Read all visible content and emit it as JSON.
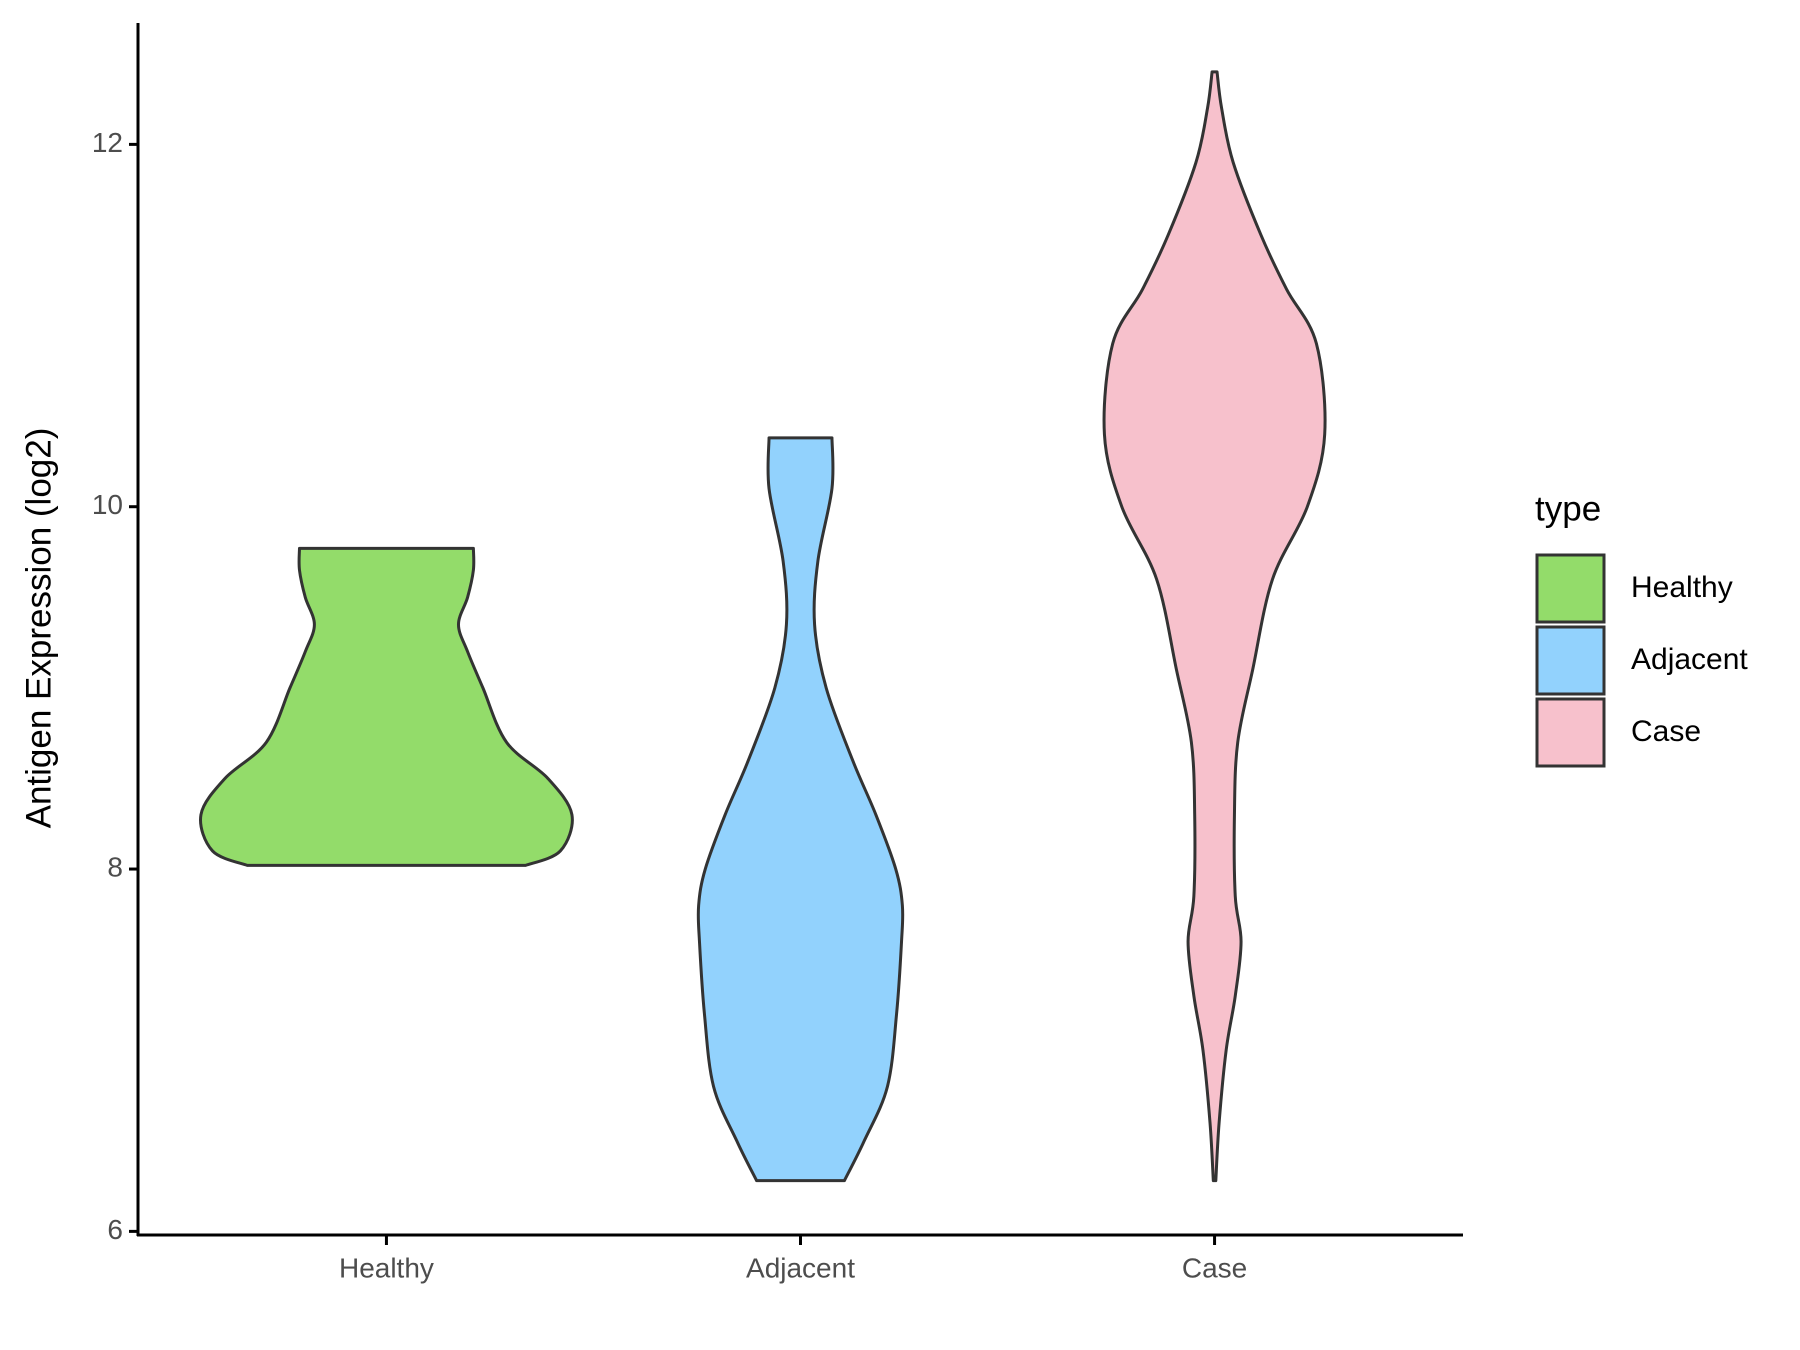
{
  "chart_data": {
    "type": "violin",
    "y_label": "Antigen Expression (log2)",
    "categories": [
      "Healthy",
      "Adjacent",
      "Case"
    ],
    "legend_title": "type",
    "legend_position": "right",
    "ylim": [
      5.98,
      12.67
    ],
    "yticks": [
      6,
      8,
      10,
      12
    ],
    "series": [
      {
        "name": "Healthy",
        "color": "#93dc6a",
        "y": [
          8.02,
          8.1,
          8.3,
          8.5,
          8.7,
          9.0,
          9.2,
          9.35,
          9.5,
          9.65,
          9.77
        ],
        "width": [
          0.336,
          0.42,
          0.448,
          0.39,
          0.29,
          0.233,
          0.196,
          0.174,
          0.196,
          0.21,
          0.21
        ]
      },
      {
        "name": "Adjacent",
        "color": "#92d2fd",
        "y": [
          6.28,
          6.5,
          6.8,
          7.2,
          7.6,
          7.8,
          8.0,
          8.3,
          8.6,
          9.0,
          9.35,
          9.7,
          10.1,
          10.38
        ],
        "width": [
          0.106,
          0.154,
          0.21,
          0.232,
          0.244,
          0.246,
          0.23,
          0.182,
          0.126,
          0.062,
          0.034,
          0.042,
          0.076,
          0.076
        ]
      },
      {
        "name": "Case",
        "color": "#f7c1cc",
        "y": [
          6.28,
          6.6,
          7.0,
          7.3,
          7.6,
          7.85,
          8.3,
          8.7,
          9.1,
          9.6,
          10.0,
          10.4,
          10.9,
          11.2,
          11.5,
          11.9,
          12.2,
          12.4
        ],
        "width": [
          0.003,
          0.011,
          0.028,
          0.05,
          0.064,
          0.05,
          0.048,
          0.056,
          0.092,
          0.14,
          0.224,
          0.266,
          0.246,
          0.174,
          0.112,
          0.045,
          0.017,
          0.006
        ]
      }
    ]
  }
}
